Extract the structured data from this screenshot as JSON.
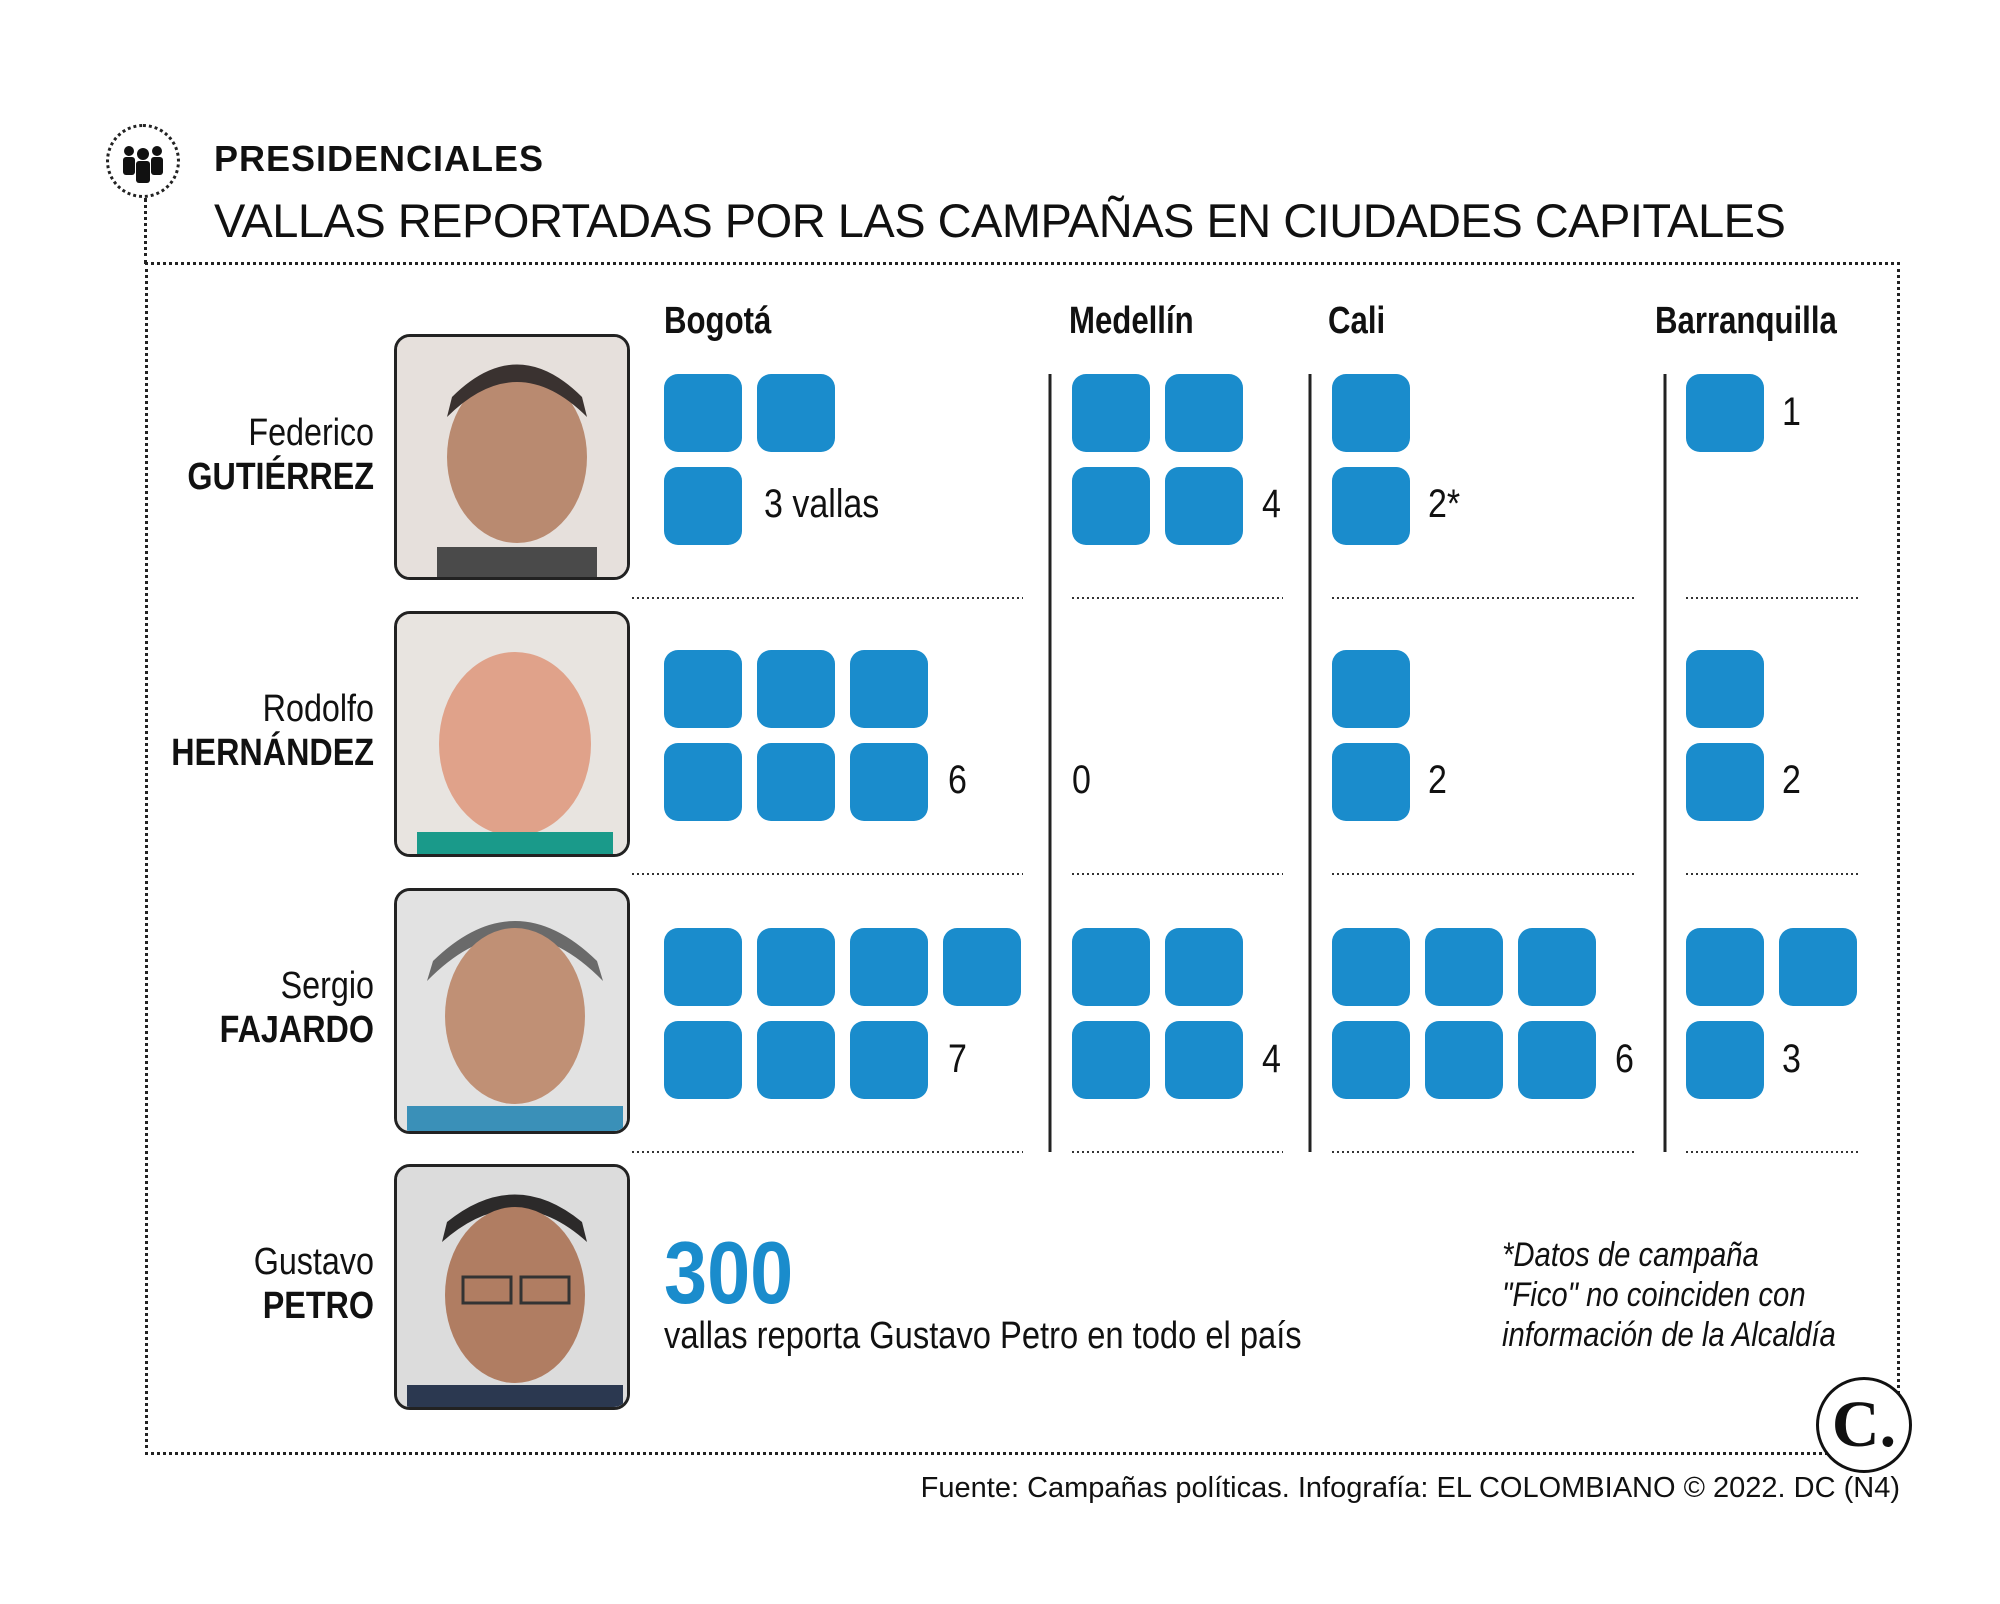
{
  "header": {
    "section_label": "PRESIDENCIALES",
    "title": "VALLAS REPORTADAS POR LAS CAMPAÑAS EN CIUDADES CAPITALES",
    "section_icon": "people-group-icon"
  },
  "chart_data": {
    "type": "table",
    "unit_label": "vallas",
    "columns": [
      "Bogotá",
      "Medellín",
      "Cali",
      "Barranquilla"
    ],
    "rows": [
      {
        "first": "Federico",
        "last": "GUTIÉRREZ",
        "values": [
          3,
          4,
          2,
          1
        ],
        "labels": [
          "3 vallas",
          "4",
          "2*",
          "1"
        ]
      },
      {
        "first": "Rodolfo",
        "last": "HERNÁNDEZ",
        "values": [
          6,
          0,
          2,
          2
        ],
        "labels": [
          "6",
          "0",
          "2",
          "2"
        ]
      },
      {
        "first": "Sergio",
        "last": "FAJARDO",
        "values": [
          7,
          4,
          6,
          3
        ],
        "labels": [
          "7",
          "4",
          "6",
          "3"
        ]
      }
    ],
    "petro": {
      "first": "Gustavo",
      "last": "PETRO",
      "value": 300,
      "label": "300",
      "caption": "vallas reporta Gustavo Petro en todo el país"
    },
    "square_color": "#1a8ccc"
  },
  "footnote": {
    "lines": [
      "*Datos de campaña",
      "\"Fico\" no coinciden con",
      "información de la Alcaldía"
    ]
  },
  "source": "Fuente: Campañas políticas. Infografía: EL COLOMBIANO © 2022. DC (N4)",
  "logo": {
    "text": "C.",
    "icon": "el-colombiano-logo"
  }
}
